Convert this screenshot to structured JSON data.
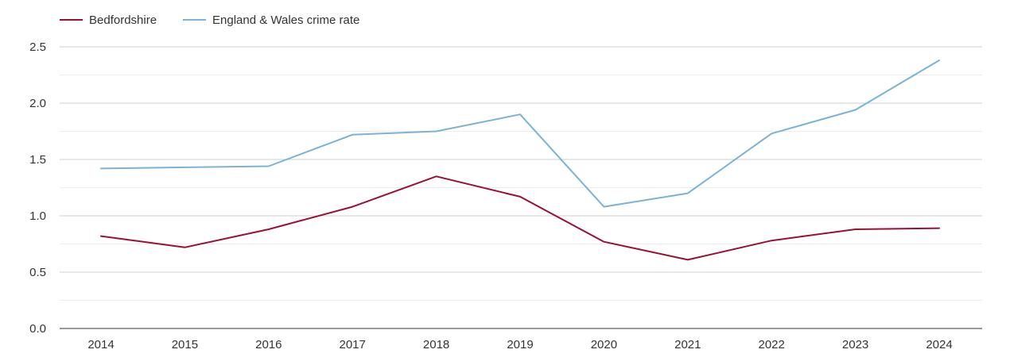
{
  "chart_data": {
    "type": "line",
    "title": "",
    "xlabel": "",
    "ylabel": "",
    "x": [
      "2014",
      "2015",
      "2016",
      "2017",
      "2018",
      "2019",
      "2020",
      "2021",
      "2022",
      "2023",
      "2024"
    ],
    "ylim": [
      0,
      2.5
    ],
    "y_ticks": [
      "0.0",
      "0.5",
      "1.0",
      "1.5",
      "2.0",
      "2.5"
    ],
    "grid": true,
    "legend_position": "top-left",
    "series": [
      {
        "name": "Bedfordshire",
        "color": "#9c0f35",
        "values": [
          0.82,
          0.72,
          0.88,
          1.08,
          1.35,
          1.17,
          0.77,
          0.61,
          0.78,
          0.88,
          0.89
        ]
      },
      {
        "name": "England & Wales crime rate",
        "color": "#7ab3d4",
        "values": [
          1.42,
          1.43,
          1.44,
          1.72,
          1.75,
          1.9,
          1.08,
          1.2,
          1.73,
          1.94,
          2.38
        ]
      }
    ]
  }
}
